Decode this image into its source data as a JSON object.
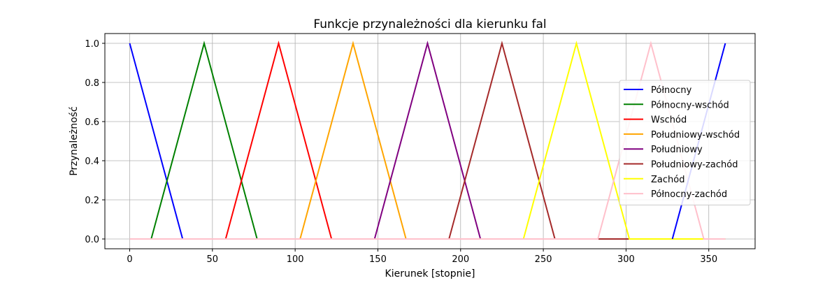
{
  "chart_data": {
    "type": "line",
    "title": "Funkcje przynależności dla kierunku fal",
    "xlabel": "Kierunek [stopnie]",
    "ylabel": "Przynależność",
    "xlim": [
      -15,
      378
    ],
    "ylim": [
      -0.05,
      1.05
    ],
    "xticks": [
      0,
      50,
      100,
      150,
      200,
      250,
      300,
      350
    ],
    "yticks": [
      0.0,
      0.2,
      0.4,
      0.6,
      0.8,
      1.0
    ],
    "xtick_labels": [
      "0",
      "50",
      "100",
      "150",
      "200",
      "250",
      "300",
      "350"
    ],
    "ytick_labels": [
      "0.0",
      "0.2",
      "0.4",
      "0.6",
      "0.8",
      "1.0"
    ],
    "grid": true,
    "legend_position": "center-right",
    "series": [
      {
        "name": "Północny",
        "color": "#0000ff",
        "x": [
          0,
          32,
          360
        ],
        "y": [
          1,
          0,
          0
        ]
      },
      {
        "name": "Północny-wschód",
        "color": "#008000",
        "x": [
          0,
          13,
          45,
          77,
          360
        ],
        "y": [
          0,
          0,
          1,
          0,
          0
        ]
      },
      {
        "name": "Wschód",
        "color": "#ff0000",
        "x": [
          0,
          58,
          90,
          122,
          360
        ],
        "y": [
          0,
          0,
          1,
          0,
          0
        ]
      },
      {
        "name": "Południowy-wschód",
        "color": "#ffa500",
        "x": [
          0,
          103,
          135,
          167,
          360
        ],
        "y": [
          0,
          0,
          1,
          0,
          0
        ]
      },
      {
        "name": "Południowy",
        "color": "#800080",
        "x": [
          0,
          148,
          180,
          212,
          360
        ],
        "y": [
          0,
          0,
          1,
          0,
          0
        ]
      },
      {
        "name": "Południowy-zachód",
        "color": "#a52a2a",
        "x": [
          0,
          193,
          225,
          257,
          360
        ],
        "y": [
          0,
          0,
          1,
          0,
          0
        ]
      },
      {
        "name": "Zachód",
        "color": "#ffff00",
        "x": [
          0,
          238,
          270,
          302,
          360
        ],
        "y": [
          0,
          0,
          1,
          0,
          0
        ]
      },
      {
        "name": "Północny-zachód",
        "color": "#ffc0cb",
        "x": [
          0,
          283,
          315,
          347,
          360
        ],
        "y": [
          0,
          0,
          1,
          0,
          0
        ]
      },
      {
        "name": "Północny",
        "color": "#0000ff",
        "x": [
          328,
          360
        ],
        "y": [
          0,
          1
        ],
        "legend": false
      }
    ]
  }
}
